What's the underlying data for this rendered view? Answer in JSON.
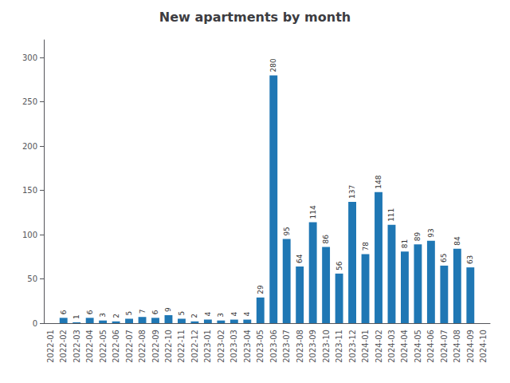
{
  "chart_data": {
    "type": "bar",
    "title": "New apartments by month",
    "categories": [
      "2022-01",
      "2022-02",
      "2022-03",
      "2022-04",
      "2022-05",
      "2022-06",
      "2022-07",
      "2022-08",
      "2022-09",
      "2022-10",
      "2022-11",
      "2022-12",
      "2023-01",
      "2023-02",
      "2023-03",
      "2023-04",
      "2023-05",
      "2023-06",
      "2023-07",
      "2023-08",
      "2023-09",
      "2023-10",
      "2023-11",
      "2023-12",
      "2024-01",
      "2024-02",
      "2024-03",
      "2024-04",
      "2024-05",
      "2024-06",
      "2024-07",
      "2024-08",
      "2024-09",
      "2024-10"
    ],
    "values": [
      0,
      6,
      1,
      6,
      3,
      2,
      5,
      7,
      6,
      9,
      5,
      2,
      4,
      3,
      4,
      4,
      29,
      280,
      95,
      64,
      114,
      86,
      56,
      137,
      78,
      148,
      111,
      81,
      89,
      93,
      65,
      84,
      63,
      0
    ],
    "value_labels": [
      null,
      "6",
      "1",
      "6",
      "3",
      "2",
      "5",
      "7",
      "6",
      "9",
      "5",
      "2",
      "4",
      "3",
      "4",
      "4",
      "29",
      "280",
      "95",
      "64",
      "114",
      "86",
      "56",
      "137",
      "78",
      "148",
      "111",
      "81",
      "89",
      "93",
      "65",
      "84",
      "63",
      null
    ],
    "data_labels": true,
    "color": "#1f77b4",
    "ylim": [
      0,
      320
    ],
    "yticks": [
      0,
      50,
      100,
      150,
      200,
      250,
      300
    ],
    "grid": false
  }
}
